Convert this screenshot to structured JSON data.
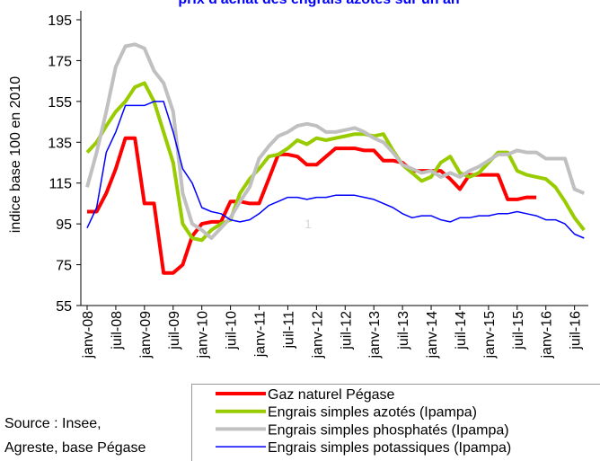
{
  "chart_data": {
    "type": "line",
    "title": "prix d'achat des engrais azotés sur un an",
    "y_label": "indice base 100 en 2010",
    "annotation": "1",
    "source": [
      "Source : Insee,",
      "Agreste, base Pégase"
    ],
    "ylim": [
      55,
      195
    ],
    "yticks": [
      55,
      75,
      95,
      115,
      135,
      155,
      175,
      195
    ],
    "categories": [
      "janv-08",
      null,
      null,
      "juil-08",
      null,
      null,
      "janv-09",
      null,
      null,
      "juil-09",
      null,
      null,
      "janv-10",
      null,
      null,
      "juil-10",
      null,
      null,
      "janv-11",
      null,
      null,
      "juil-11",
      null,
      null,
      "janv-12",
      null,
      null,
      "juil-12",
      null,
      null,
      "janv-13",
      null,
      null,
      "juil-13",
      null,
      null,
      "janv-14",
      null,
      null,
      "juil-14",
      null,
      null,
      "janv-15",
      null,
      null,
      "juil-15",
      null,
      null,
      "janv-16",
      null,
      null,
      "juil-16",
      null
    ],
    "series": [
      {
        "name": "Gaz naturel Pégase",
        "color": "#ff0000",
        "width": 4,
        "values": [
          101,
          101,
          110,
          122,
          137,
          137,
          105,
          105,
          71,
          71,
          75,
          89,
          95,
          96,
          96,
          106,
          106,
          105,
          105,
          117,
          129,
          129,
          128,
          124,
          124,
          128,
          132,
          132,
          132,
          131,
          131,
          126,
          126,
          125,
          121,
          121,
          121,
          121,
          117,
          112,
          119,
          119,
          119,
          119,
          107,
          107,
          108,
          108,
          null,
          null,
          null,
          null,
          null
        ]
      },
      {
        "name": "Engrais simples azotés (Ipampa)",
        "color": "#99cc00",
        "width": 4,
        "values": [
          130,
          135,
          143,
          150,
          155,
          162,
          164,
          155,
          140,
          125,
          95,
          88,
          87,
          92,
          95,
          97,
          110,
          117,
          122,
          128,
          129,
          132,
          136,
          134,
          137,
          136,
          137,
          138,
          139,
          139,
          138,
          139,
          131,
          124,
          120,
          116,
          118,
          125,
          128,
          120,
          118,
          120,
          125,
          130,
          130,
          121,
          119,
          118,
          117,
          113,
          106,
          98,
          92
        ]
      },
      {
        "name": "Engrais simples phosphatés (Ipampa)",
        "color": "#c0c0c0",
        "width": 4,
        "values": [
          113,
          130,
          150,
          172,
          182,
          183,
          181,
          170,
          164,
          150,
          110,
          95,
          92,
          88,
          93,
          98,
          106,
          113,
          127,
          133,
          138,
          140,
          143,
          144,
          143,
          140,
          140,
          141,
          142,
          140,
          137,
          135,
          130,
          124,
          122,
          120,
          121,
          118,
          120,
          118,
          121,
          123,
          126,
          129,
          129,
          131,
          130,
          130,
          127,
          127,
          127,
          112,
          110
        ]
      },
      {
        "name": "Engrais simples potassiques (Ipampa)",
        "color": "#0000ff",
        "width": 1.5,
        "values": [
          93,
          103,
          130,
          140,
          153,
          153,
          153,
          155,
          155,
          140,
          122,
          115,
          103,
          101,
          100,
          97,
          96,
          97,
          100,
          104,
          106,
          108,
          108,
          107,
          108,
          108,
          109,
          109,
          109,
          108,
          107,
          105,
          103,
          100,
          98,
          99,
          99,
          97,
          96,
          98,
          98,
          99,
          99,
          100,
          100,
          101,
          100,
          99,
          97,
          97,
          95,
          90,
          88
        ]
      }
    ]
  }
}
